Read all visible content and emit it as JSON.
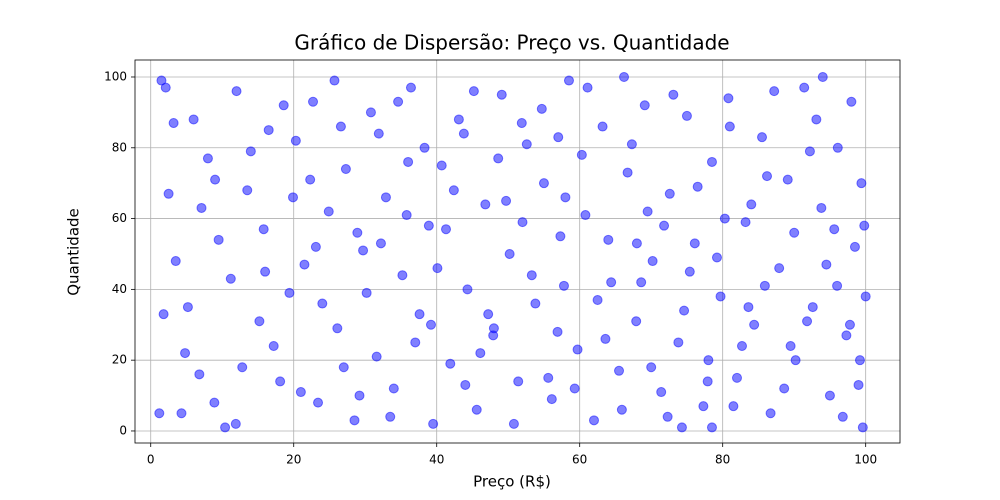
{
  "chart_data": {
    "type": "scatter",
    "title": "Gráfico de Dispersão: Preço vs. Quantidade",
    "x_label": "Preço (R$)",
    "y_label": "Quantidade",
    "color": "#0000ff",
    "opacity": 0.5,
    "grid": true,
    "xlim": [
      -2.2,
      104.8
    ],
    "ylim": [
      -3.4,
      104.8
    ],
    "xticks": [
      0,
      20,
      40,
      60,
      80,
      100
    ],
    "yticks": [
      0,
      20,
      40,
      60,
      80,
      100
    ],
    "x": [
      1.5,
      2.1,
      1.2,
      4.3,
      2.5,
      3.2,
      10.4,
      99.6,
      99.2,
      99.8,
      100,
      78.5,
      74.3,
      96,
      5.2,
      6.8,
      8,
      9.5,
      12,
      13.5,
      15.2,
      16.5,
      18.1,
      19.4,
      20.3,
      21.5,
      22.7,
      23.4,
      24.9,
      26.1,
      27.3,
      28.5,
      29.7,
      30.8,
      31.6,
      32.9,
      34,
      35.2,
      36.4,
      37.6,
      38.9,
      39.5,
      40.7,
      41.9,
      43.1,
      44.3,
      45.6,
      46.8,
      47.9,
      49.1,
      50.2,
      51.4,
      52.6,
      53.8,
      55,
      56.1,
      57.3,
      58.5,
      59.7,
      60.8,
      62,
      63.2,
      64.4,
      65.5,
      66.7,
      67.9,
      69.1,
      70.2,
      71.4,
      72.6,
      73.8,
      75,
      76.1,
      77.3,
      78.5,
      79.7,
      80.8,
      82,
      83.2,
      84.4,
      85.5,
      86.7,
      87.9,
      89.1,
      90.2,
      91.4,
      92.6,
      93.8,
      95,
      96.1,
      97.3,
      98.5,
      99.4,
      3.5,
      4.8,
      7.1,
      8.9,
      11.2,
      14,
      15.8,
      17.2,
      18.6,
      21,
      22.3,
      24,
      25.7,
      27,
      28.9,
      30.2,
      31.9,
      33.5,
      35.8,
      37,
      38.3,
      40.1,
      42.4,
      44,
      45.2,
      47.2,
      48.6,
      50.8,
      52,
      53.3,
      54.7,
      56.9,
      58,
      59.3,
      61.1,
      62.5,
      64,
      65.9,
      67.3,
      68.6,
      70,
      71.8,
      73.1,
      74.6,
      76.5,
      77.9,
      79.2,
      81,
      82.7,
      84,
      85.9,
      87.2,
      88.6,
      90,
      91.8,
      93.1,
      94.5,
      96.8,
      98,
      99,
      1.8,
      6,
      9,
      12.8,
      16,
      19.9,
      23.1,
      26.6,
      29.2,
      32.2,
      36,
      39.2,
      41.3,
      43.8,
      46.1,
      49.7,
      51.9,
      55.6,
      57.8,
      60.3,
      63.6,
      66.2,
      69.5,
      72.3,
      75.4,
      78,
      80.3,
      83.6,
      86.2,
      89.5,
      92.2,
      95.6,
      97.8,
      11.9,
      34.6,
      48,
      57,
      68,
      81.5,
      94
    ],
    "values": [
      99,
      97,
      5,
      5,
      67,
      87,
      1,
      1,
      20,
      58,
      38,
      1,
      1,
      41,
      35,
      16,
      77,
      54,
      96,
      68,
      31,
      85,
      14,
      39,
      82,
      47,
      93,
      8,
      62,
      29,
      74,
      3,
      51,
      90,
      21,
      66,
      12,
      44,
      97,
      33,
      58,
      2,
      75,
      19,
      88,
      40,
      6,
      64,
      27,
      95,
      50,
      14,
      81,
      36,
      70,
      9,
      55,
      99,
      23,
      61,
      3,
      86,
      42,
      17,
      73,
      31,
      92,
      48,
      11,
      67,
      25,
      89,
      53,
      7,
      76,
      38,
      94,
      15,
      59,
      30,
      83,
      5,
      46,
      71,
      20,
      97,
      35,
      63,
      10,
      80,
      27,
      52,
      70,
      48,
      22,
      63,
      8,
      43,
      79,
      57,
      24,
      92,
      11,
      71,
      36,
      99,
      18,
      56,
      39,
      84,
      4,
      61,
      25,
      80,
      46,
      68,
      13,
      96,
      33,
      77,
      2,
      59,
      44,
      91,
      28,
      66,
      12,
      97,
      37,
      54,
      6,
      81,
      42,
      18,
      58,
      95,
      34,
      69,
      14,
      49,
      86,
      24,
      64,
      41,
      96,
      12,
      56,
      31,
      88,
      47,
      4,
      93,
      13,
      33,
      88,
      71,
      18,
      45,
      66,
      52,
      86,
      10,
      53,
      76,
      30,
      57,
      84,
      22,
      65,
      87,
      15,
      41,
      78,
      26,
      100,
      62,
      4,
      45,
      20,
      60,
      35,
      72,
      24,
      79,
      57,
      30,
      2,
      93,
      29,
      83,
      53,
      7,
      100
    ]
  }
}
